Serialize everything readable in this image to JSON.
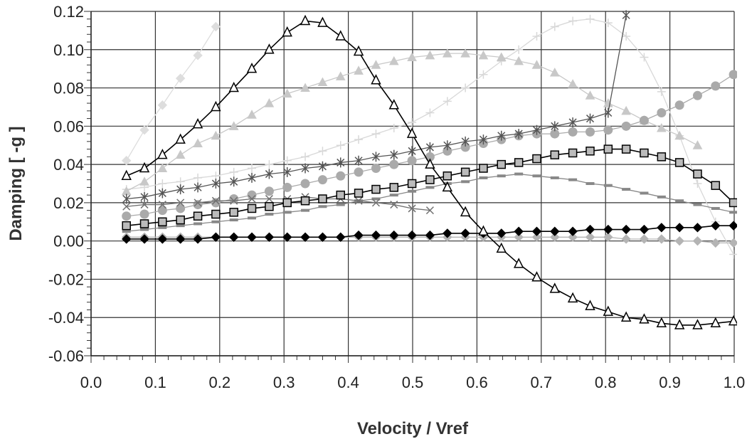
{
  "chart_data": {
    "type": "line",
    "xlabel": "Velocity / Vref",
    "ylabel": "Damping [ -g ]",
    "xlim": [
      0.0,
      1.0
    ],
    "ylim": [
      -0.06,
      0.12
    ],
    "x_ticks": [
      "0.0",
      "0.1",
      "0.2",
      "0.3",
      "0.4",
      "0.5",
      "0.6",
      "0.7",
      "0.8",
      "0.9",
      "1.0"
    ],
    "y_ticks": [
      "0.12",
      "0.10",
      "0.08",
      "0.06",
      "0.04",
      "0.02",
      "0.00",
      "-0.02",
      "-0.04",
      "-0.06"
    ],
    "grid": true,
    "legend": "none",
    "series": [
      {
        "marker": "triangle",
        "color": "#000000",
        "fill": "#ffffff",
        "x": [
          0.055,
          0.083,
          0.111,
          0.139,
          0.166,
          0.194,
          0.222,
          0.25,
          0.277,
          0.305,
          0.333,
          0.36,
          0.388,
          0.416,
          0.443,
          0.471,
          0.499,
          0.527,
          0.554,
          0.582,
          0.61,
          0.638,
          0.665,
          0.693,
          0.721,
          0.749,
          0.776,
          0.804,
          0.832,
          0.86,
          0.887,
          0.915,
          0.943,
          0.971,
          0.999
        ],
        "y": [
          0.034,
          0.038,
          0.045,
          0.053,
          0.061,
          0.07,
          0.08,
          0.09,
          0.1,
          0.109,
          0.115,
          0.114,
          0.107,
          0.099,
          0.084,
          0.071,
          0.056,
          0.04,
          0.028,
          0.015,
          0.005,
          -0.004,
          -0.012,
          -0.019,
          -0.025,
          -0.03,
          -0.034,
          -0.037,
          -0.04,
          -0.041,
          -0.043,
          -0.044,
          -0.044,
          -0.043,
          -0.042
        ]
      },
      {
        "marker": "square",
        "color": "#000000",
        "fill": "#bbbbbb",
        "x": [
          0.055,
          0.083,
          0.111,
          0.139,
          0.166,
          0.194,
          0.222,
          0.25,
          0.277,
          0.305,
          0.333,
          0.36,
          0.388,
          0.416,
          0.443,
          0.471,
          0.499,
          0.527,
          0.554,
          0.582,
          0.61,
          0.638,
          0.665,
          0.693,
          0.721,
          0.749,
          0.776,
          0.804,
          0.832,
          0.86,
          0.887,
          0.915,
          0.943,
          0.971,
          0.999
        ],
        "y": [
          0.008,
          0.009,
          0.01,
          0.011,
          0.013,
          0.014,
          0.015,
          0.017,
          0.018,
          0.02,
          0.021,
          0.022,
          0.024,
          0.025,
          0.027,
          0.028,
          0.03,
          0.032,
          0.034,
          0.036,
          0.038,
          0.04,
          0.041,
          0.043,
          0.045,
          0.046,
          0.047,
          0.048,
          0.048,
          0.046,
          0.044,
          0.041,
          0.035,
          0.029,
          0.02
        ]
      },
      {
        "marker": "x",
        "color": "#707070",
        "x": [
          0.055,
          0.083,
          0.111,
          0.139,
          0.166,
          0.194,
          0.222,
          0.25,
          0.277,
          0.305,
          0.333,
          0.36,
          0.388,
          0.416,
          0.443,
          0.471,
          0.499,
          0.527
        ],
        "y": [
          0.018,
          0.019,
          0.019,
          0.02,
          0.02,
          0.021,
          0.021,
          0.022,
          0.022,
          0.022,
          0.023,
          0.022,
          0.022,
          0.021,
          0.02,
          0.019,
          0.017,
          0.016
        ]
      },
      {
        "marker": "star",
        "color": "#555555",
        "x": [
          0.055,
          0.083,
          0.111,
          0.139,
          0.166,
          0.194,
          0.222,
          0.25,
          0.277,
          0.305,
          0.333,
          0.36,
          0.388,
          0.416,
          0.443,
          0.471,
          0.499,
          0.527,
          0.554,
          0.582,
          0.61,
          0.638,
          0.665,
          0.693,
          0.721,
          0.749,
          0.776,
          0.804,
          0.832
        ],
        "y": [
          0.022,
          0.023,
          0.025,
          0.027,
          0.028,
          0.03,
          0.031,
          0.033,
          0.035,
          0.036,
          0.038,
          0.039,
          0.041,
          0.042,
          0.044,
          0.045,
          0.047,
          0.049,
          0.05,
          0.052,
          0.053,
          0.055,
          0.056,
          0.058,
          0.06,
          0.062,
          0.064,
          0.067,
          0.118
        ]
      },
      {
        "marker": "dash",
        "color": "#888888",
        "x": [
          0.055,
          0.083,
          0.111,
          0.139,
          0.166,
          0.194,
          0.222,
          0.25,
          0.277,
          0.305,
          0.333,
          0.36,
          0.388,
          0.416,
          0.443,
          0.471,
          0.499,
          0.527,
          0.554,
          0.582,
          0.61,
          0.638,
          0.665,
          0.693,
          0.721,
          0.749,
          0.776,
          0.804,
          0.832,
          0.86,
          0.887,
          0.915,
          0.943,
          0.971,
          0.999
        ],
        "y": [
          0.005,
          0.006,
          0.007,
          0.008,
          0.009,
          0.01,
          0.011,
          0.012,
          0.014,
          0.015,
          0.016,
          0.018,
          0.019,
          0.021,
          0.022,
          0.024,
          0.026,
          0.028,
          0.03,
          0.031,
          0.033,
          0.034,
          0.035,
          0.034,
          0.033,
          0.032,
          0.03,
          0.029,
          0.027,
          0.025,
          0.023,
          0.021,
          0.019,
          0.017,
          0.015
        ]
      },
      {
        "marker": "circle",
        "color": "#aaaaaa",
        "x": [
          0.055,
          0.083,
          0.111,
          0.139,
          0.166,
          0.194,
          0.222,
          0.25,
          0.277,
          0.305,
          0.333,
          0.36,
          0.388,
          0.416,
          0.443,
          0.471,
          0.499,
          0.527,
          0.554,
          0.582,
          0.61,
          0.638,
          0.665,
          0.693,
          0.721,
          0.749,
          0.776,
          0.804,
          0.832,
          0.86,
          0.887,
          0.915,
          0.943,
          0.971,
          0.999
        ],
        "y": [
          0.013,
          0.014,
          0.016,
          0.017,
          0.019,
          0.02,
          0.022,
          0.024,
          0.026,
          0.028,
          0.03,
          0.032,
          0.034,
          0.036,
          0.038,
          0.04,
          0.042,
          0.044,
          0.047,
          0.049,
          0.051,
          0.053,
          0.055,
          0.056,
          0.056,
          0.057,
          0.057,
          0.058,
          0.06,
          0.063,
          0.067,
          0.071,
          0.076,
          0.081,
          0.087
        ]
      },
      {
        "marker": "triangle-filled",
        "color": "#c8c8c8",
        "x": [
          0.055,
          0.083,
          0.111,
          0.139,
          0.166,
          0.194,
          0.222,
          0.25,
          0.277,
          0.305,
          0.333,
          0.36,
          0.388,
          0.416,
          0.443,
          0.471,
          0.499,
          0.527,
          0.554,
          0.582,
          0.61,
          0.638,
          0.665,
          0.693,
          0.721,
          0.749,
          0.776,
          0.804,
          0.832,
          0.86,
          0.887,
          0.915,
          0.943
        ],
        "y": [
          0.026,
          0.031,
          0.038,
          0.045,
          0.051,
          0.055,
          0.06,
          0.066,
          0.072,
          0.077,
          0.08,
          0.083,
          0.086,
          0.089,
          0.092,
          0.094,
          0.096,
          0.097,
          0.098,
          0.098,
          0.097,
          0.096,
          0.094,
          0.092,
          0.088,
          0.082,
          0.076,
          0.072,
          0.068,
          0.063,
          0.059,
          0.055,
          0.05
        ]
      },
      {
        "marker": "plus",
        "color": "#d8d8d8",
        "x": [
          0.055,
          0.083,
          0.111,
          0.139,
          0.166,
          0.194,
          0.222,
          0.25,
          0.277,
          0.305,
          0.333,
          0.36,
          0.388,
          0.416,
          0.443,
          0.471,
          0.499,
          0.527,
          0.554,
          0.582,
          0.61,
          0.638,
          0.665,
          0.693,
          0.721,
          0.749,
          0.776,
          0.804,
          0.832,
          0.86,
          0.887,
          0.915,
          0.943,
          0.971,
          0.999
        ],
        "y": [
          0.027,
          0.028,
          0.03,
          0.031,
          0.033,
          0.034,
          0.036,
          0.038,
          0.04,
          0.042,
          0.044,
          0.047,
          0.05,
          0.053,
          0.056,
          0.059,
          0.062,
          0.067,
          0.073,
          0.08,
          0.087,
          0.094,
          0.1,
          0.107,
          0.112,
          0.115,
          0.116,
          0.114,
          0.107,
          0.096,
          0.078,
          0.055,
          0.03,
          0.01,
          -0.007
        ]
      },
      {
        "marker": "diamond",
        "color": "#000000",
        "x": [
          0.055,
          0.083,
          0.111,
          0.139,
          0.166,
          0.194,
          0.222,
          0.25,
          0.277,
          0.305,
          0.333,
          0.36,
          0.388,
          0.416,
          0.443,
          0.471,
          0.499,
          0.527,
          0.554,
          0.582,
          0.61,
          0.638,
          0.665,
          0.693,
          0.721,
          0.749,
          0.776,
          0.804,
          0.832,
          0.86,
          0.887,
          0.915,
          0.943,
          0.971,
          0.999
        ],
        "y": [
          0.001,
          0.001,
          0.001,
          0.001,
          0.001,
          0.002,
          0.002,
          0.002,
          0.002,
          0.002,
          0.002,
          0.002,
          0.002,
          0.003,
          0.003,
          0.003,
          0.003,
          0.003,
          0.004,
          0.004,
          0.004,
          0.004,
          0.005,
          0.005,
          0.005,
          0.005,
          0.006,
          0.006,
          0.006,
          0.006,
          0.007,
          0.007,
          0.007,
          0.008,
          0.008
        ]
      },
      {
        "marker": "diamond",
        "color": "#b4b4b4",
        "x": [
          0.055,
          0.083,
          0.111,
          0.139,
          0.166,
          0.194,
          0.222,
          0.25,
          0.277,
          0.305,
          0.333,
          0.36,
          0.388,
          0.416,
          0.443,
          0.471,
          0.499,
          0.527,
          0.554,
          0.582,
          0.61,
          0.638,
          0.665,
          0.693,
          0.721,
          0.749,
          0.776,
          0.804,
          0.832,
          0.86,
          0.887,
          0.915,
          0.943,
          0.971,
          0.999
        ],
        "y": [
          0.002,
          0.002,
          0.002,
          0.002,
          0.002,
          0.002,
          0.002,
          0.002,
          0.002,
          0.002,
          0.002,
          0.002,
          0.002,
          0.002,
          0.002,
          0.002,
          0.002,
          0.002,
          0.002,
          0.002,
          0.002,
          0.002,
          0.002,
          0.002,
          0.002,
          0.002,
          0.002,
          0.002,
          0.001,
          0.001,
          0.001,
          0.0,
          0.0,
          -0.001,
          -0.001
        ]
      },
      {
        "marker": "diamond",
        "color": "#dddddd",
        "x": [
          0.055,
          0.083,
          0.111,
          0.139,
          0.166,
          0.194
        ],
        "y": [
          0.042,
          0.058,
          0.071,
          0.085,
          0.097,
          0.112
        ]
      }
    ]
  }
}
